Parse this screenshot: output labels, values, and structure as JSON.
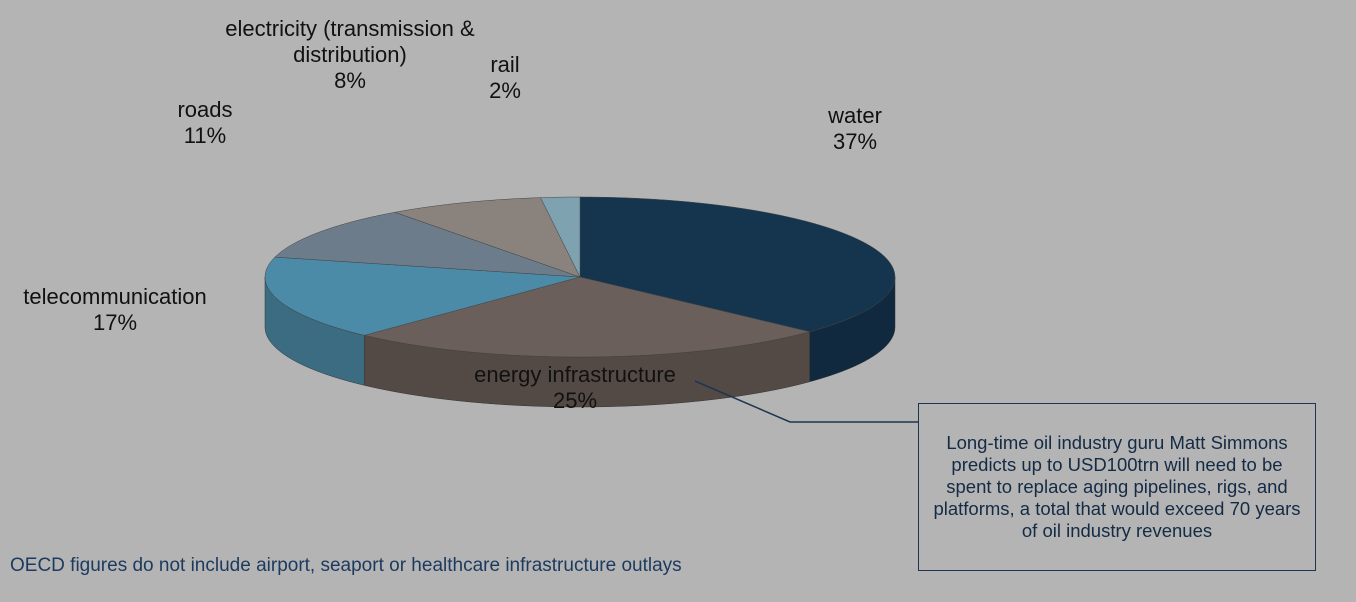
{
  "chart_data": {
    "type": "pie3d",
    "categories": [
      "water",
      "energy infrastructure",
      "telecommunication",
      "roads",
      "electricity (transmission & distribution)",
      "rail"
    ],
    "values": [
      37,
      25,
      17,
      11,
      8,
      2
    ],
    "value_labels": [
      "37%",
      "25%",
      "17%",
      "11%",
      "8%",
      "2%"
    ],
    "colors": [
      "#15354f",
      "#6a5f5a",
      "#4b8ba7",
      "#6d7c8b",
      "#8a837d",
      "#7fa2b1"
    ],
    "annotations": [
      "Long-time oil industry guru Matt Simmons predicts up to USD100trn will need to be spent to replace aging pipelines, rigs, and platforms, a total that would exceed 70 years of oil industry revenues",
      "OECD figures do not include airport, seaport or healthcare infrastructure outlays"
    ]
  }
}
